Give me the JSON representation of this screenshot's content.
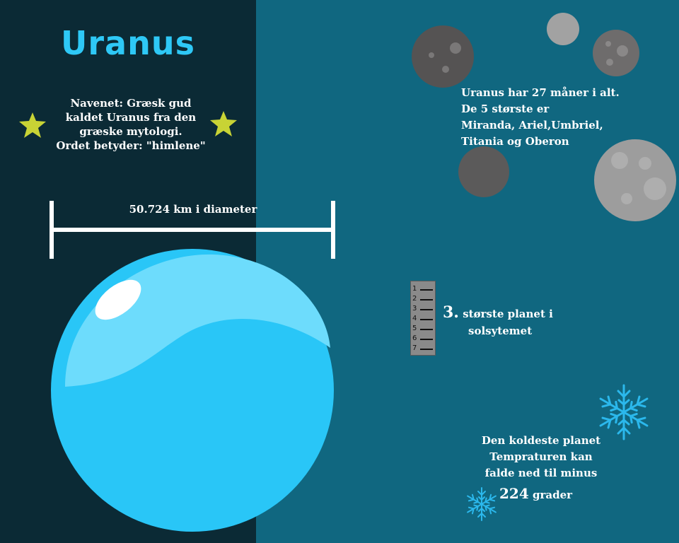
{
  "title": "Uranus",
  "origin": {
    "lines": [
      "Navenet: Græsk gud",
      "kaldet Uranus fra den",
      "græske mytologi.",
      "Ordet betyder: \"himlene\""
    ]
  },
  "diameter": {
    "label": "50.724 km i diameter"
  },
  "moons": {
    "lines": [
      "Uranus har 27 måner i alt.",
      "De 5 største er",
      "Miranda, Ariel,Umbriel,",
      "Titania og Oberon"
    ]
  },
  "ranking": {
    "scale": [
      "1",
      "2",
      "3",
      "4",
      "5",
      "6",
      "7"
    ],
    "number": "3.",
    "line1": "største planet i",
    "line2": "solsytemet"
  },
  "cold": {
    "lines": [
      "Den koldeste planet",
      "Tempraturen kan",
      "falde ned til minus"
    ],
    "temp_value": "224",
    "temp_unit": "grader"
  },
  "colors": {
    "left_bg": "#0b2a35",
    "right_bg": "#106780",
    "title": "#2ec8f6",
    "planet": "#29c6f7",
    "star": "#c8d335",
    "snowflake": "#2bb8ec"
  },
  "icons": [
    "star-icon",
    "moon-icon",
    "ruler-icon",
    "snowflake-icon"
  ]
}
